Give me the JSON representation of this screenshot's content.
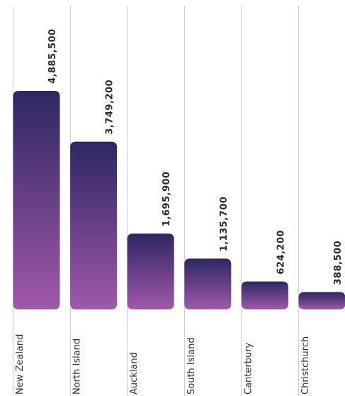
{
  "chart_data": {
    "type": "bar",
    "title": "",
    "xlabel": "",
    "ylabel": "",
    "categories": [
      "New Zealand",
      "North Island",
      "Auckland",
      "South Island",
      "Canterbury",
      "Christchurch"
    ],
    "values": [
      4885500,
      3749200,
      1695900,
      1135700,
      624200,
      388500
    ],
    "value_labels": [
      "4,885,500",
      "3,749,200",
      "1,695,900",
      "1,135,700",
      "624,200",
      "388,500"
    ],
    "orientation": "vertical",
    "labels_rotated": true,
    "grid": true,
    "legend": "none",
    "colors": {
      "bar_top": "#2e2763",
      "bar_bottom": "#a058ab",
      "gridline": "#cccccc",
      "text": "#333333"
    }
  }
}
